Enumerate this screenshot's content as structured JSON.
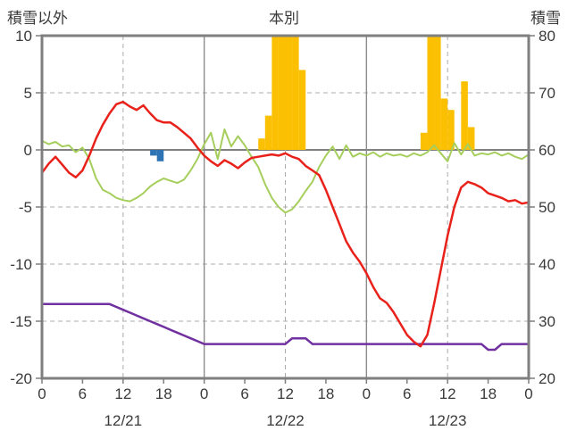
{
  "chart_data": {
    "type": "line",
    "title": "本別",
    "x_hours_span": 72,
    "x_tick_step": 6,
    "x_tick_labels": [
      "0",
      "6",
      "12",
      "18",
      "0",
      "6",
      "12",
      "18",
      "0",
      "6",
      "12",
      "18",
      "0"
    ],
    "date_labels": [
      {
        "label": "12/21",
        "hour": 12
      },
      {
        "label": "12/22",
        "hour": 36
      },
      {
        "label": "12/23",
        "hour": 60
      }
    ],
    "left_axis": {
      "title": "積雪以外",
      "min": -20,
      "max": 10,
      "ticks": [
        10,
        5,
        0,
        -5,
        -10,
        -15,
        -20
      ]
    },
    "right_axis": {
      "title": "積雪",
      "min": 20,
      "max": 80,
      "ticks": [
        80,
        70,
        60,
        50,
        40,
        30,
        20
      ]
    },
    "colors": {
      "temperature": "#e8221a",
      "green_metric": "#a6ce5c",
      "snow_depth": "#7030a0",
      "snowfall_bars": "#fcc003",
      "rain_bars": "#2e74b5",
      "grid_dashed": "#ababab",
      "grid_solid": "#8c8c8c",
      "zero_line": "#808080",
      "frame": "#7f7f7f",
      "text": "#3a3a3a"
    },
    "series": [
      {
        "name": "snowfall-bars",
        "type": "bar",
        "axis": "right",
        "baseline": 60,
        "bars": [
          {
            "hour": 32,
            "value": 62
          },
          {
            "hour": 33,
            "value": 66
          },
          {
            "hour": 34,
            "value": 83
          },
          {
            "hour": 35,
            "value": 85
          },
          {
            "hour": 36,
            "value": 84
          },
          {
            "hour": 37,
            "value": 83
          },
          {
            "hour": 38,
            "value": 74
          },
          {
            "hour": 56,
            "value": 63
          },
          {
            "hour": 57,
            "value": 83
          },
          {
            "hour": 58,
            "value": 85
          },
          {
            "hour": 59,
            "value": 69
          },
          {
            "hour": 60,
            "value": 67
          },
          {
            "hour": 62,
            "value": 72
          },
          {
            "hour": 63,
            "value": 64
          }
        ]
      },
      {
        "name": "rain-bars",
        "type": "bar",
        "axis": "left",
        "baseline": 0,
        "bars": [
          {
            "hour": 16,
            "value": -0.5
          },
          {
            "hour": 17,
            "value": -1.0
          }
        ]
      },
      {
        "name": "green-metric",
        "type": "line",
        "axis": "left",
        "width": 2,
        "values": [
          0.8,
          0.5,
          0.7,
          0.3,
          0.4,
          -0.2,
          0.2,
          -0.8,
          -2.5,
          -3.5,
          -3.8,
          -4.2,
          -4.4,
          -4.5,
          -4.2,
          -3.8,
          -3.2,
          -2.8,
          -2.5,
          -2.7,
          -2.9,
          -2.6,
          -1.8,
          -0.8,
          0.5,
          1.5,
          -0.8,
          1.8,
          0.3,
          1.2,
          0.4,
          -0.6,
          -1.5,
          -3.0,
          -4.2,
          -5.0,
          -5.5,
          -5.2,
          -4.5,
          -3.6,
          -2.8,
          -1.5,
          -0.5,
          0.3,
          -0.8,
          0.4,
          -0.6,
          -0.3,
          -0.5,
          -0.2,
          -0.6,
          -0.3,
          -0.5,
          -0.4,
          -0.6,
          -0.3,
          -0.5,
          -0.2,
          0.4,
          -0.3,
          -1.0,
          0.6,
          -0.4,
          0.5,
          -0.5,
          -0.3,
          -0.4,
          -0.2,
          -0.5,
          -0.3,
          -0.6,
          -0.8,
          -0.4
        ]
      },
      {
        "name": "snow-depth",
        "type": "line",
        "axis": "right",
        "width": 2.5,
        "values": [
          33,
          33,
          33,
          33,
          33,
          33,
          33,
          33,
          33,
          33,
          33,
          32.5,
          32,
          31.5,
          31,
          30.5,
          30,
          29.5,
          29,
          28.5,
          28,
          27.5,
          27,
          26.5,
          26,
          26,
          26,
          26,
          26,
          26,
          26,
          26,
          26,
          26,
          26,
          26,
          26,
          27,
          27,
          27,
          26,
          26,
          26,
          26,
          26,
          26,
          26,
          26,
          26,
          26,
          26,
          26,
          26,
          26,
          26,
          26,
          26,
          26,
          26,
          26,
          26,
          26,
          26,
          26,
          26,
          26,
          25,
          25,
          26,
          26,
          26,
          26,
          26
        ]
      },
      {
        "name": "temperature",
        "type": "line",
        "axis": "left",
        "width": 2.5,
        "values": [
          -2.0,
          -1.2,
          -0.6,
          -1.3,
          -2.0,
          -2.4,
          -1.8,
          -0.5,
          1.0,
          2.2,
          3.2,
          4.0,
          4.2,
          3.8,
          3.5,
          3.9,
          3.2,
          2.6,
          2.4,
          2.4,
          2.0,
          1.5,
          1.0,
          0.2,
          -0.5,
          -1.0,
          -1.4,
          -0.9,
          -1.2,
          -1.6,
          -1.1,
          -0.7,
          -0.6,
          -0.5,
          -0.4,
          -0.5,
          -0.3,
          -0.6,
          -0.8,
          -1.4,
          -1.8,
          -2.2,
          -3.5,
          -5.0,
          -6.5,
          -8.0,
          -9.0,
          -9.8,
          -10.8,
          -12.0,
          -13.0,
          -13.4,
          -14.2,
          -15.2,
          -16.2,
          -16.8,
          -17.2,
          -16.2,
          -13.5,
          -10.5,
          -7.5,
          -5.0,
          -3.3,
          -2.8,
          -3.0,
          -3.3,
          -3.8,
          -4.0,
          -4.2,
          -4.5,
          -4.4,
          -4.7,
          -4.6
        ]
      }
    ],
    "grid": {
      "horizontal_dashed": true,
      "vertical_noon_dashed": true,
      "vertical_midnight_solid": true,
      "legend": "none"
    }
  }
}
